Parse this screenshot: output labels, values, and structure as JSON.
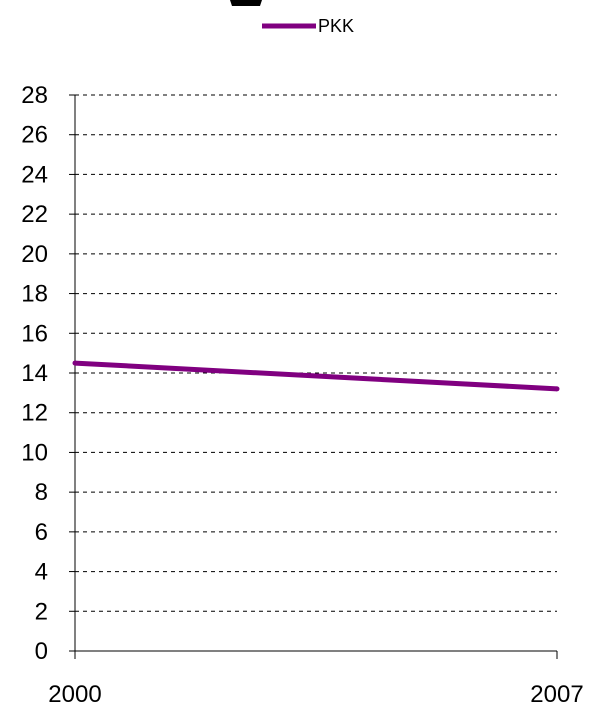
{
  "chart_data": {
    "type": "line",
    "title": "",
    "xlabel": "",
    "ylabel": "",
    "x": [
      "2000",
      "2007"
    ],
    "series": [
      {
        "name": "PKK",
        "values": [
          14.5,
          13.2
        ],
        "color": "#800080"
      }
    ],
    "ylim": [
      0,
      28
    ],
    "yticks": [
      0,
      2,
      4,
      6,
      8,
      10,
      12,
      14,
      16,
      18,
      20,
      22,
      24,
      26,
      28
    ],
    "grid": true,
    "grid_style": "dashed",
    "legend_position": "top-center"
  }
}
